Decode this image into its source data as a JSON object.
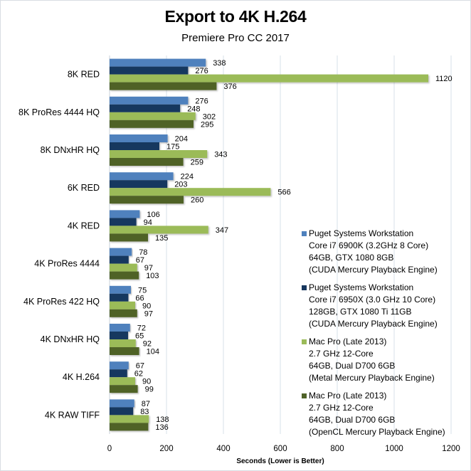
{
  "chart_data": {
    "type": "bar",
    "orientation": "horizontal",
    "title": "Export to 4K H.264",
    "subtitle": "Premiere Pro CC 2017",
    "xlabel": "Seconds  (Lower is Better)",
    "ylabel": "",
    "xlim": [
      0,
      1200
    ],
    "xticks": [
      0,
      200,
      400,
      600,
      800,
      1000,
      1200
    ],
    "grid": "vertical",
    "legend_position": "right",
    "categories": [
      "8K RED",
      "8K ProRes 4444 HQ",
      "8K DNxHR HQ",
      "6K RED",
      "4K RED",
      "4K ProRes 4444",
      "4K ProRes 422 HQ",
      "4K DNxHR HQ",
      "4K H.264",
      "4K RAW TIFF"
    ],
    "series": [
      {
        "name": "Puget Systems Workstation Core i7 6900K (3.2GHz 8 Core) 64GB, GTX 1080 8GB (CUDA Mercury Playback Engine)",
        "legend_lines": [
          "Puget Systems Workstation",
          "Core i7 6900K (3.2GHz 8 Core)",
          "64GB, GTX 1080 8GB",
          "(CUDA Mercury Playback Engine)"
        ],
        "color": "#4f81bd",
        "values": [
          338,
          276,
          204,
          224,
          106,
          78,
          75,
          72,
          67,
          87
        ]
      },
      {
        "name": "Puget Systems Workstation Core i7 6950X (3.0 GHz 10 Core) 128GB, GTX 1080 Ti 11GB (CUDA Mercury Playback Engine)",
        "legend_lines": [
          "Puget Systems Workstation",
          "Core i7 6950X (3.0 GHz 10 Core)",
          "128GB, GTX 1080 Ti 11GB",
          "(CUDA Mercury Playback Engine)"
        ],
        "color": "#17375e",
        "values": [
          276,
          248,
          175,
          203,
          94,
          67,
          66,
          65,
          62,
          83
        ]
      },
      {
        "name": "Mac Pro (Late 2013) 2.7 GHz 12-Core 64GB, Dual D700 6GB (Metal Mercury Playback Engine)",
        "legend_lines": [
          "Mac Pro (Late 2013)",
          "2.7 GHz 12-Core",
          "64GB, Dual D700 6GB",
          "(Metal Mercury Playback Engine)"
        ],
        "color": "#9bbb59",
        "values": [
          1120,
          302,
          343,
          566,
          347,
          97,
          90,
          92,
          90,
          138
        ]
      },
      {
        "name": "Mac Pro (Late 2013) 2.7 GHz 12-Core 64GB, Dual D700 6GB (OpenCL Mercury Playback Engine)",
        "legend_lines": [
          "Mac Pro (Late 2013)",
          "2.7 GHz 12-Core",
          "64GB, Dual D700 6GB",
          "(OpenCL Mercury Playback Engine)"
        ],
        "color": "#4f6228",
        "values": [
          376,
          295,
          259,
          260,
          135,
          103,
          97,
          104,
          99,
          136
        ]
      }
    ]
  }
}
